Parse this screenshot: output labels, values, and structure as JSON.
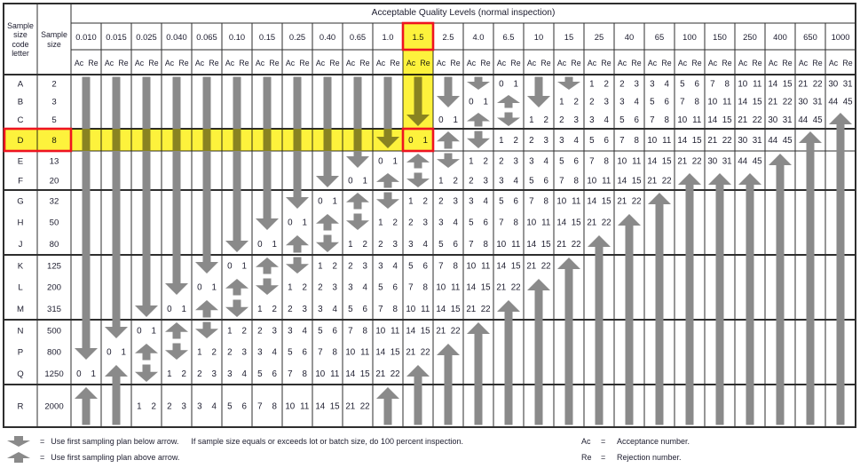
{
  "table": {
    "title": "Acceptable Quality Levels (normal inspection)",
    "corner": {
      "code_letter_header": "Sample\nsize\ncode\nletter",
      "size_header": "Sample\nsize"
    },
    "subheader": {
      "ac": "Ac",
      "re": "Re"
    },
    "aql_levels": [
      "0.010",
      "0.015",
      "0.025",
      "0.040",
      "0.065",
      "0.10",
      "0.15",
      "0.25",
      "0.40",
      "0.65",
      "1.0",
      "1.5",
      "2.5",
      "4.0",
      "6.5",
      "10",
      "15",
      "25",
      "40",
      "65",
      "100",
      "150",
      "250",
      "400",
      "650",
      "1000"
    ],
    "cell_legend": "tokens: numeric = 'Ac Re' pair, D = down-arrow segment, U = up-arrow segment, d = single down arrow, u = single up arrow",
    "rows": [
      {
        "code": "A",
        "size": "2",
        "cells": [
          "D",
          "D",
          "D",
          "D",
          "D",
          "D",
          "D",
          "D",
          "D",
          "D",
          "D",
          "D",
          "D",
          "D",
          "0 1",
          "D",
          "D",
          "1 2",
          "2 3",
          "3 4",
          "5 6",
          "7 8",
          "10 11",
          "14 15",
          "21 22",
          "30 31"
        ]
      },
      {
        "code": "B",
        "size": "3",
        "cells": [
          "D",
          "D",
          "D",
          "D",
          "D",
          "D",
          "D",
          "D",
          "D",
          "D",
          "D",
          "D",
          "D",
          "0 1",
          "u",
          "D",
          "1 2",
          "2 3",
          "3 4",
          "5 6",
          "7 8",
          "10 11",
          "14 15",
          "21 22",
          "30 31",
          "44 45"
        ]
      },
      {
        "code": "C",
        "size": "5",
        "cells": [
          "D",
          "D",
          "D",
          "D",
          "D",
          "D",
          "D",
          "D",
          "D",
          "D",
          "D",
          "D",
          "0 1",
          "u",
          "d",
          "1 2",
          "2 3",
          "3 4",
          "5 6",
          "7 8",
          "10 11",
          "14 15",
          "21 22",
          "30 31",
          "44 45",
          "U"
        ]
      },
      {
        "code": "D",
        "size": "8",
        "cells": [
          "D",
          "D",
          "D",
          "D",
          "D",
          "D",
          "D",
          "D",
          "D",
          "D",
          "D",
          "0 1",
          "u",
          "d",
          "1 2",
          "2 3",
          "3 4",
          "5 6",
          "7 8",
          "10 11",
          "14 15",
          "21 22",
          "30 31",
          "44 45",
          "U",
          "U"
        ]
      },
      {
        "code": "E",
        "size": "13",
        "cells": [
          "D",
          "D",
          "D",
          "D",
          "D",
          "D",
          "D",
          "D",
          "D",
          "D",
          "0 1",
          "u",
          "d",
          "1 2",
          "2 3",
          "3 4",
          "5 6",
          "7 8",
          "10 11",
          "14 15",
          "21 22",
          "30 31",
          "44 45",
          "U",
          "U",
          "U"
        ]
      },
      {
        "code": "F",
        "size": "20",
        "cells": [
          "D",
          "D",
          "D",
          "D",
          "D",
          "D",
          "D",
          "D",
          "D",
          "0 1",
          "u",
          "d",
          "1 2",
          "2 3",
          "3 4",
          "5 6",
          "7 8",
          "10 11",
          "14 15",
          "21 22",
          "U",
          "U",
          "U",
          "U",
          "U",
          "U"
        ]
      },
      {
        "code": "G",
        "size": "32",
        "cells": [
          "D",
          "D",
          "D",
          "D",
          "D",
          "D",
          "D",
          "D",
          "0 1",
          "u",
          "d",
          "1 2",
          "2 3",
          "3 4",
          "5 6",
          "7 8",
          "10 11",
          "14 15",
          "21 22",
          "U",
          "U",
          "U",
          "U",
          "U",
          "U",
          "U"
        ]
      },
      {
        "code": "H",
        "size": "50",
        "cells": [
          "D",
          "D",
          "D",
          "D",
          "D",
          "D",
          "D",
          "0 1",
          "u",
          "d",
          "1 2",
          "2 3",
          "3 4",
          "5 6",
          "7 8",
          "10 11",
          "14 15",
          "21 22",
          "U",
          "U",
          "U",
          "U",
          "U",
          "U",
          "U",
          "U"
        ]
      },
      {
        "code": "J",
        "size": "80",
        "cells": [
          "D",
          "D",
          "D",
          "D",
          "D",
          "D",
          "0 1",
          "u",
          "d",
          "1 2",
          "2 3",
          "3 4",
          "5 6",
          "7 8",
          "10 11",
          "14 15",
          "21 22",
          "U",
          "U",
          "U",
          "U",
          "U",
          "U",
          "U",
          "U",
          "U"
        ]
      },
      {
        "code": "K",
        "size": "125",
        "cells": [
          "D",
          "D",
          "D",
          "D",
          "D",
          "0 1",
          "u",
          "d",
          "1 2",
          "2 3",
          "3 4",
          "5 6",
          "7 8",
          "10 11",
          "14 15",
          "21 22",
          "U",
          "U",
          "U",
          "U",
          "U",
          "U",
          "U",
          "U",
          "U",
          "U"
        ]
      },
      {
        "code": "L",
        "size": "200",
        "cells": [
          "D",
          "D",
          "D",
          "D",
          "0 1",
          "u",
          "d",
          "1 2",
          "2 3",
          "3 4",
          "5 6",
          "7 8",
          "10 11",
          "14 15",
          "21 22",
          "U",
          "U",
          "U",
          "U",
          "U",
          "U",
          "U",
          "U",
          "U",
          "U",
          "U"
        ]
      },
      {
        "code": "M",
        "size": "315",
        "cells": [
          "D",
          "D",
          "D",
          "0 1",
          "u",
          "d",
          "1 2",
          "2 3",
          "3 4",
          "5 6",
          "7 8",
          "10 11",
          "14 15",
          "21 22",
          "U",
          "U",
          "U",
          "U",
          "U",
          "U",
          "U",
          "U",
          "U",
          "U",
          "U",
          "U"
        ]
      },
      {
        "code": "N",
        "size": "500",
        "cells": [
          "D",
          "D",
          "0 1",
          "u",
          "d",
          "1 2",
          "2 3",
          "3 4",
          "5 6",
          "7 8",
          "10 11",
          "14 15",
          "21 22",
          "U",
          "U",
          "U",
          "U",
          "U",
          "U",
          "U",
          "U",
          "U",
          "U",
          "U",
          "U",
          "U"
        ]
      },
      {
        "code": "P",
        "size": "800",
        "cells": [
          "D",
          "0 1",
          "u",
          "d",
          "1 2",
          "2 3",
          "3 4",
          "5 6",
          "7 8",
          "10 11",
          "14 15",
          "21 22",
          "U",
          "U",
          "U",
          "U",
          "U",
          "U",
          "U",
          "U",
          "U",
          "U",
          "U",
          "U",
          "U",
          "U"
        ]
      },
      {
        "code": "Q",
        "size": "1250",
        "cells": [
          "0 1",
          "U",
          "d",
          "1 2",
          "2 3",
          "3 4",
          "5 6",
          "7 8",
          "10 11",
          "14 15",
          "21 22",
          "U",
          "U",
          "U",
          "U",
          "U",
          "U",
          "U",
          "U",
          "U",
          "U",
          "U",
          "U",
          "U",
          "U",
          "U"
        ]
      },
      {
        "code": "R",
        "size": "2000",
        "cells": [
          "U",
          "U",
          "1 2",
          "2 3",
          "3 4",
          "5 6",
          "7 8",
          "10 11",
          "14 15",
          "21 22",
          "U",
          "U",
          "U",
          "U",
          "U",
          "U",
          "U",
          "U",
          "U",
          "U",
          "U",
          "U",
          "U",
          "U",
          "U",
          "U"
        ]
      }
    ]
  },
  "highlights": {
    "highlighted_aql_column": "1.5",
    "highlighted_row_code": "D",
    "highlighted_sample_size": "8",
    "intersection_cell": "0 1",
    "yellow": "#fdf23c",
    "red": "#ee1420"
  },
  "legend": {
    "eq": "=",
    "down_text": "Use first sampling plan below arrow.",
    "down_text2": "If sample size equals or exceeds lot or batch size, do 100 percent inspection.",
    "up_text": "Use first sampling plan above arrow.",
    "ac_abbr": "Ac",
    "ac_text": "Acceptance number.",
    "re_abbr": "Re",
    "re_text": "Rejection number."
  },
  "colors": {
    "arrow": "#8a8a8a",
    "grid_line": "#2e2e2e",
    "text": "#1c1c2e",
    "background": "#ffffff"
  }
}
